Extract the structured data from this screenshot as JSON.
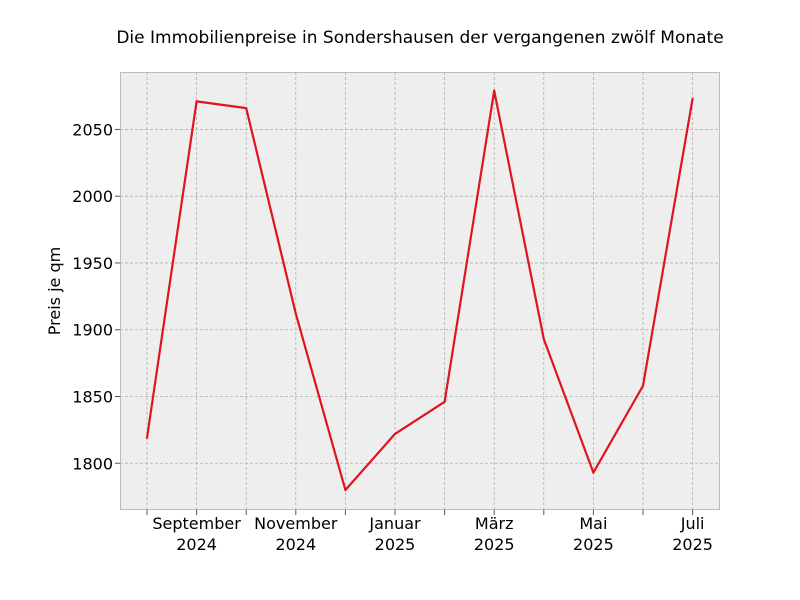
{
  "chart_data": {
    "type": "line",
    "title": "Die Immobilienpreise in Sondershausen der vergangenen zwölf Monate",
    "xlabel": "",
    "ylabel": "Preis je qm",
    "x": [
      "2024-08",
      "2024-09",
      "2024-10",
      "2024-11",
      "2024-12",
      "2025-01",
      "2025-02",
      "2025-03",
      "2025-04",
      "2025-05",
      "2025-06",
      "2025-07"
    ],
    "x_tick_labels": [
      {
        "x": "2024-09",
        "line1": "September",
        "line2": "2024"
      },
      {
        "x": "2024-11",
        "line1": "November",
        "line2": "2024"
      },
      {
        "x": "2025-01",
        "line1": "Januar",
        "line2": "2025"
      },
      {
        "x": "2025-03",
        "line1": "März",
        "line2": "2025"
      },
      {
        "x": "2025-05",
        "line1": "Mai",
        "line2": "2025"
      },
      {
        "x": "2025-07",
        "line1": "Juli",
        "line2": "2025"
      }
    ],
    "y_ticks": [
      1800,
      1850,
      1900,
      1950,
      2000,
      2050
    ],
    "ylim": [
      1765,
      2093
    ],
    "grid": true,
    "series": [
      {
        "color": "#e0141e",
        "values": [
          1819,
          2071,
          2066,
          1912,
          1780,
          1822,
          1846,
          2079,
          1893,
          1793,
          1858,
          2073
        ]
      }
    ]
  }
}
